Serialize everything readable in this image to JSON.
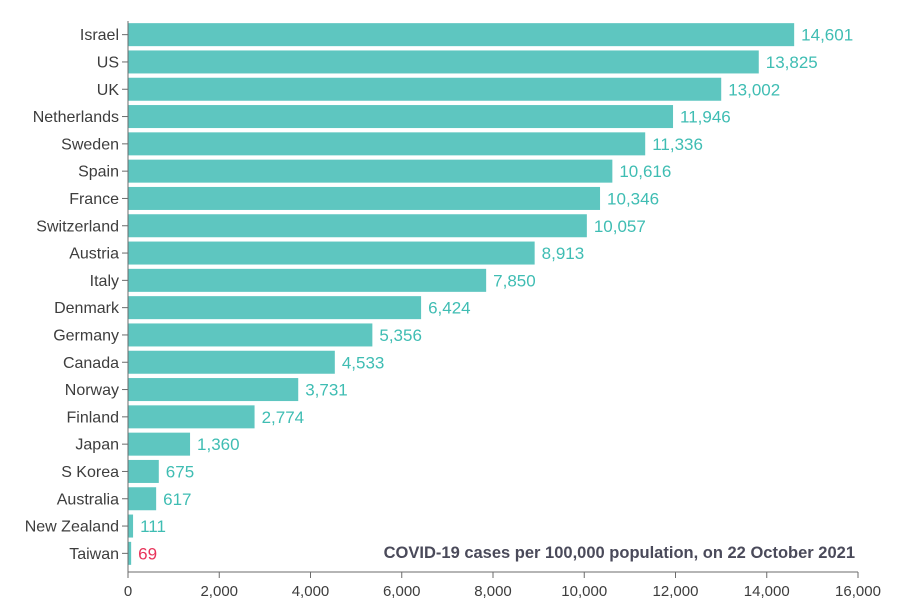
{
  "chart_data": {
    "type": "bar",
    "orientation": "horizontal",
    "title": "COVID-19 cases per 100,000 population, on 22 October 2021",
    "xlabel": "",
    "ylabel": "",
    "xlim": [
      0,
      16000
    ],
    "x_ticks": [
      0,
      2000,
      4000,
      6000,
      8000,
      10000,
      12000,
      14000,
      16000
    ],
    "x_tick_labels": [
      "0",
      "2,000",
      "4,000",
      "6,000",
      "8,000",
      "10,000",
      "12,000",
      "14,000",
      "16,000"
    ],
    "grid": false,
    "bar_color": "#5ec6c0",
    "highlight_label_color": "#e8335a",
    "value_label_color": "#3fbdb3",
    "categories": [
      "Israel",
      "US",
      "UK",
      "Netherlands",
      "Sweden",
      "Spain",
      "France",
      "Switzerland",
      "Austria",
      "Italy",
      "Denmark",
      "Germany",
      "Canada",
      "Norway",
      "Finland",
      "Japan",
      "S Korea",
      "Australia",
      "New Zealand",
      "Taiwan"
    ],
    "values": [
      14601,
      13825,
      13002,
      11946,
      11336,
      10616,
      10346,
      10057,
      8913,
      7850,
      6424,
      5356,
      4533,
      3731,
      2774,
      1360,
      675,
      617,
      111,
      69
    ],
    "value_labels": [
      "14,601",
      "13,825",
      "13,002",
      "11,946",
      "11,336",
      "10,616",
      "10,346",
      "10,057",
      "8,913",
      "7,850",
      "6,424",
      "5,356",
      "4,533",
      "3,731",
      "2,774",
      "1,360",
      "675",
      "617",
      "111",
      "69"
    ],
    "highlighted": [
      "Taiwan"
    ]
  }
}
